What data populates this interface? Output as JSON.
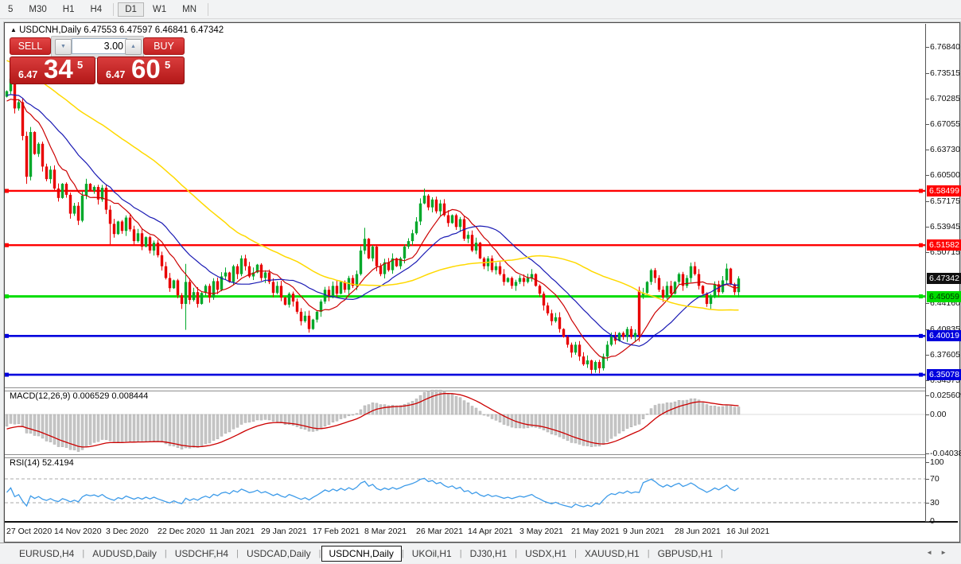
{
  "toolbar": {
    "timeframes": [
      "5",
      "M30",
      "H1",
      "H4",
      "D1",
      "W1",
      "MN"
    ],
    "active": "D1"
  },
  "header": {
    "collapse_icon": "▲",
    "symbol": "USDCNH,Daily",
    "ohlc_text": "6.47553 6.47597 6.46841 6.47342"
  },
  "trade_panel": {
    "sell_label": "SELL",
    "buy_label": "BUY",
    "volume": "3.00",
    "spin_down_icon": "▼",
    "spin_up_icon": "▲",
    "sell_price": {
      "small": "6.47",
      "big": "34",
      "sup": "5"
    },
    "buy_price": {
      "small": "6.47",
      "big": "60",
      "sup": "5"
    }
  },
  "price_axis": {
    "ticks": [
      "6.76840",
      "6.73515",
      "6.70285",
      "6.67055",
      "6.63730",
      "6.60500",
      "6.57175",
      "6.53945",
      "6.50715",
      "6.44160",
      "6.40835",
      "6.37605",
      "6.34375"
    ],
    "badges": [
      {
        "text": "6.58499",
        "price": 6.58499,
        "bg": "#ff0000",
        "fg": "#ffffff"
      },
      {
        "text": "6.51582",
        "price": 6.51582,
        "bg": "#ff0000",
        "fg": "#ffffff"
      },
      {
        "text": "6.47342",
        "price": 6.47342,
        "bg": "#101010",
        "fg": "#ffffff"
      },
      {
        "text": "6.45059",
        "price": 6.45059,
        "bg": "#00dd00",
        "fg": "#003300"
      },
      {
        "text": "6.40019",
        "price": 6.40019,
        "bg": "#0000dd",
        "fg": "#ffffff"
      },
      {
        "text": "6.35078",
        "price": 6.35078,
        "bg": "#0000dd",
        "fg": "#ffffff"
      }
    ]
  },
  "chart_data": {
    "type": "candlestick",
    "symbol": "USDCNH",
    "timeframe": "Daily",
    "title": "USDCNH,Daily",
    "x_labels": [
      "27 Oct 2020",
      "14 Nov 2020",
      "3 Dec 2020",
      "22 Dec 2020",
      "11 Jan 2021",
      "29 Jan 2021",
      "17 Feb 2021",
      "8 Mar 2021",
      "26 Mar 2021",
      "14 Apr 2021",
      "3 May 2021",
      "21 May 2021",
      "9 Jun 2021",
      "28 Jun 2021",
      "16 Jul 2021"
    ],
    "bars_per_label": 13,
    "y_range": [
      6.3375,
      6.787
    ],
    "levels": [
      {
        "price": 6.58499,
        "color": "#ff0000",
        "w": 2.4
      },
      {
        "price": 6.51582,
        "color": "#ff0000",
        "w": 2.4
      },
      {
        "price": 6.45059,
        "color": "#00dd00",
        "w": 3
      },
      {
        "price": 6.40019,
        "color": "#0000dd",
        "w": 2.6
      },
      {
        "price": 6.35078,
        "color": "#0000dd",
        "w": 2.6
      }
    ],
    "current_price": 6.47342,
    "warmup_closes": [
      6.872,
      6.866,
      6.859,
      6.864,
      6.853,
      6.847,
      6.851,
      6.84,
      6.834,
      6.838,
      6.828,
      6.822,
      6.826,
      6.815,
      6.809,
      6.813,
      6.803,
      6.797,
      6.801,
      6.79,
      6.785,
      6.789,
      6.778,
      6.772,
      6.776,
      6.766,
      6.76,
      6.764,
      6.754,
      6.748,
      6.752,
      6.742,
      6.737,
      6.741,
      6.731,
      6.725,
      6.729,
      6.72,
      6.714,
      6.718,
      6.709,
      6.704,
      6.708,
      6.728,
      6.722,
      6.717,
      6.712,
      6.707,
      6.719,
      6.714,
      6.709,
      6.704,
      6.699,
      6.694,
      6.707,
      6.702,
      6.697,
      6.692,
      6.687,
      6.7
    ],
    "closes": [
      6.712,
      6.728,
      6.69,
      6.698,
      6.655,
      6.603,
      6.66,
      6.632,
      6.645,
      6.616,
      6.6,
      6.612,
      6.588,
      6.576,
      6.594,
      6.58,
      6.556,
      6.566,
      6.547,
      6.579,
      6.594,
      6.585,
      6.59,
      6.574,
      6.589,
      6.561,
      6.543,
      6.53,
      6.546,
      6.534,
      6.551,
      6.536,
      6.521,
      6.531,
      6.514,
      6.526,
      6.509,
      6.519,
      6.503,
      6.489,
      6.474,
      6.461,
      6.471,
      6.452,
      6.441,
      6.469,
      6.446,
      6.456,
      6.441,
      6.455,
      6.464,
      6.449,
      6.47,
      6.459,
      6.476,
      6.481,
      6.469,
      6.489,
      6.479,
      6.499,
      6.489,
      6.476,
      6.481,
      6.491,
      6.474,
      6.481,
      6.469,
      6.455,
      6.464,
      6.449,
      6.44,
      6.454,
      6.444,
      6.431,
      6.419,
      6.426,
      6.409,
      6.421,
      6.431,
      6.444,
      6.459,
      6.45,
      6.464,
      6.454,
      6.469,
      6.459,
      6.474,
      6.464,
      6.479,
      6.509,
      6.524,
      6.499,
      6.514,
      6.489,
      6.479,
      6.494,
      6.484,
      6.499,
      6.489,
      6.499,
      6.514,
      6.521,
      6.531,
      6.546,
      6.569,
      6.579,
      6.564,
      6.574,
      6.559,
      6.569,
      6.554,
      6.544,
      6.554,
      6.539,
      6.549,
      6.524,
      6.529,
      6.509,
      6.519,
      6.499,
      6.489,
      6.499,
      6.484,
      6.489,
      6.479,
      6.469,
      6.474,
      6.464,
      6.469,
      6.474,
      6.469,
      6.474,
      6.479,
      6.464,
      6.454,
      6.439,
      6.429,
      6.419,
      6.424,
      6.409,
      6.399,
      6.389,
      6.379,
      6.389,
      6.374,
      6.364,
      6.369,
      6.357,
      6.367,
      6.359,
      6.374,
      6.389,
      6.399,
      6.394,
      6.404,
      6.399,
      6.409,
      6.399,
      6.404,
      6.401,
      6.455,
      6.469,
      6.484,
      6.474,
      6.459,
      6.449,
      6.464,
      6.454,
      6.469,
      6.479,
      6.464,
      6.474,
      6.489,
      6.479,
      6.464,
      6.454,
      6.441,
      6.451,
      6.466,
      6.456,
      6.471,
      6.486,
      6.466,
      6.456,
      6.4734
    ],
    "overrides": {
      "1": {
        "h": 6.746
      },
      "5": {
        "l": 6.594
      },
      "26": {
        "l": 6.517
      },
      "45": {
        "h": 6.492,
        "l": 6.408
      },
      "90": {
        "h": 6.538
      },
      "105": {
        "h": 6.588
      },
      "147": {
        "l": 6.352
      },
      "159": {
        "o": 6.458,
        "h": 6.463,
        "l": 6.393
      },
      "160": {
        "o": 6.452
      }
    },
    "colors": {
      "up": "#00a82a",
      "down": "#e80000"
    },
    "moving_averages": [
      {
        "period": 10,
        "color": "#cc0000",
        "w": 1.2
      },
      {
        "period": 21,
        "color": "#1a1ab4",
        "w": 1.2
      },
      {
        "period": 55,
        "color": "#ffd900",
        "w": 1.5
      }
    ],
    "macd": {
      "label": "MACD(12,26,9) 0.006529 0.008444",
      "fast": 12,
      "slow": 26,
      "signal": 9,
      "hist_color": "#c6c6c6",
      "hist_stroke": "#a3a3a3",
      "signal_color": "#cc0000",
      "ticks": [
        {
          "text": "0.025609",
          "v": 0.025609
        },
        {
          "text": "0.00",
          "v": 0.0
        },
        {
          "text": "-0.04038",
          "v": -0.04038
        }
      ]
    },
    "rsi": {
      "label": "RSI(14) 52.4194",
      "period": 14,
      "color": "#3d9be9",
      "levels": [
        70,
        30
      ],
      "ticks": [
        {
          "text": "100",
          "v": 100
        },
        {
          "text": "70",
          "v": 70
        },
        {
          "text": "30",
          "v": 30
        },
        {
          "text": "0",
          "v": 0
        }
      ]
    }
  },
  "tabs": {
    "items": [
      "EURUSD,H4",
      "AUDUSD,Daily",
      "USDCHF,H4",
      "USDCAD,Daily",
      "USDCNH,Daily",
      "UKOil,H1",
      "DJ30,H1",
      "USDX,H1",
      "XAUUSD,H1",
      "GBPUSD,H1"
    ],
    "active": "USDCNH,Daily",
    "scroll_left_icon": "◄",
    "scroll_right_icon": "►"
  }
}
